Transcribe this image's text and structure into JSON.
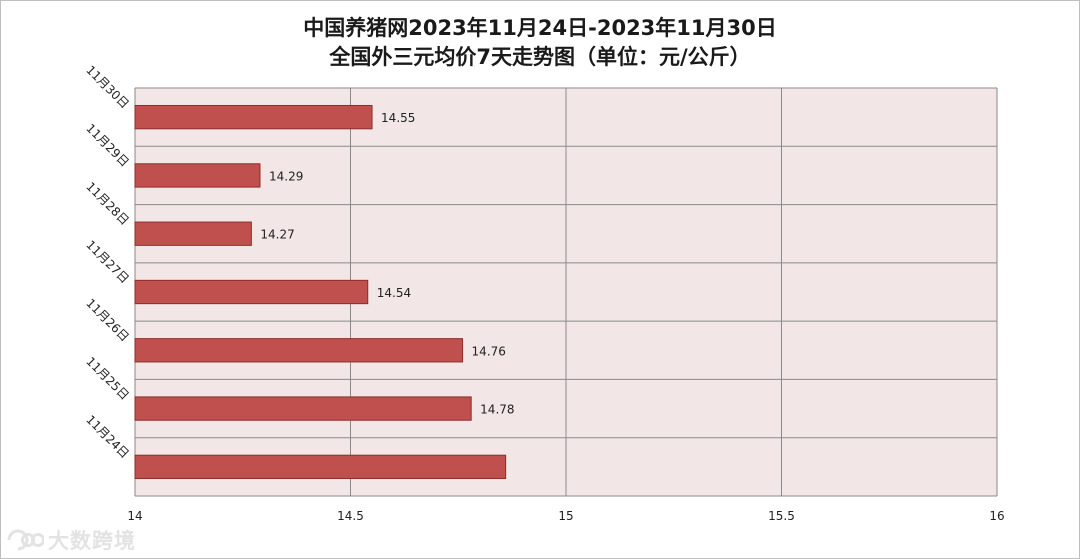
{
  "title_line1": "中国养猪网2023年11月24日-2023年11月30日",
  "title_line2": "全国外三元均价7天走势图（单位：元/公斤）",
  "watermark": "大数跨境",
  "colors": {
    "bar": "#c0504d",
    "bar_border": "#8c2e2b",
    "plot_bg": "#f2e6e6",
    "grid": "#8a8a8a"
  },
  "chart_data": {
    "type": "bar",
    "orientation": "horizontal",
    "categories": [
      "11月30日",
      "11月29日",
      "11月28日",
      "11月27日",
      "11月26日",
      "11月25日",
      "11月24日"
    ],
    "values": [
      14.55,
      14.29,
      14.27,
      14.54,
      14.76,
      14.78,
      14.86
    ],
    "data_labels": [
      "14.55",
      "14.29",
      "14.27",
      "14.54",
      "14.76",
      "14.78",
      ""
    ],
    "xlim": [
      14,
      16
    ],
    "x_ticks": [
      14,
      14.5,
      15,
      15.5,
      16
    ],
    "x_tick_labels": [
      "14",
      "14.5",
      "15",
      "15.5",
      "16"
    ],
    "grid": true,
    "legend": "none"
  }
}
